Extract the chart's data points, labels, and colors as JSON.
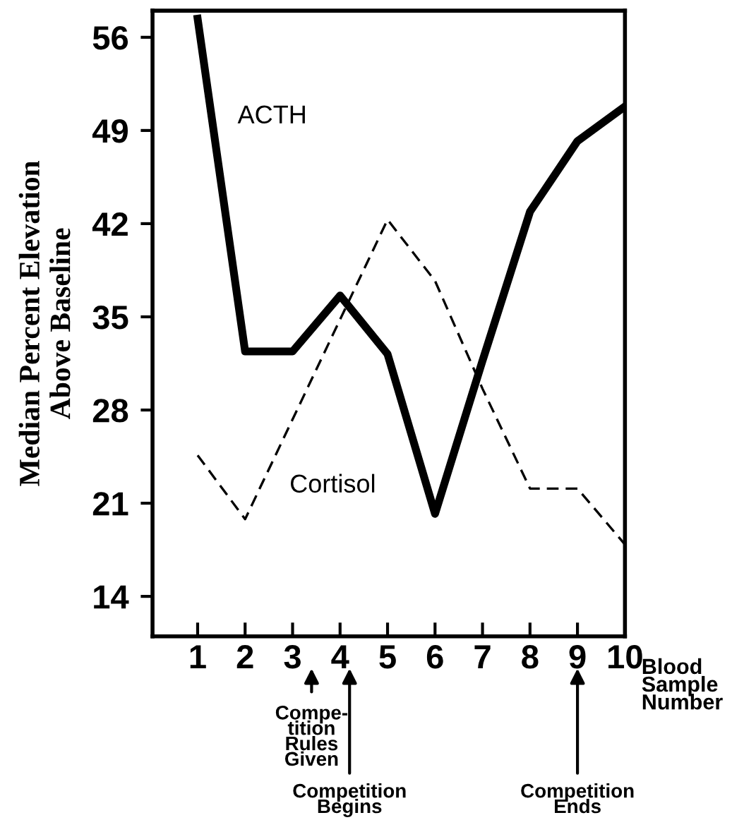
{
  "chart_data": {
    "type": "line",
    "ylabel": "Median Percent Elevation\nAbove Baseline",
    "xlabel": "Blood\nSample\nNumber",
    "x": [
      1,
      2,
      3,
      4,
      5,
      6,
      7,
      8,
      9,
      10
    ],
    "series": [
      {
        "name": "ACTH",
        "color": "#000000",
        "line_style": "solid",
        "values": [
          57.4,
          32.4,
          32.4,
          36.6,
          32.2,
          20.2,
          31.7,
          42.9,
          48.2,
          50.8
        ]
      },
      {
        "name": "Cortisol",
        "color": "#000000",
        "line_style": "dashed",
        "values": [
          24.6,
          19.8,
          27.3,
          34.8,
          42.3,
          37.7,
          29.6,
          22.1,
          22.1,
          17.9
        ]
      }
    ],
    "xlim": [
      0.05,
      10
    ],
    "ylim": [
      11,
      58
    ],
    "xticks": [
      1,
      2,
      3,
      4,
      5,
      6,
      7,
      8,
      9,
      10
    ],
    "yticks": [
      14,
      21,
      28,
      35,
      42,
      49,
      56
    ],
    "annotations": [
      "Compe-\ntition\nRules\nGiven",
      "Competition\nBegins",
      "Competition\nEnds"
    ],
    "grid": false,
    "legend": false,
    "marker": "none"
  }
}
